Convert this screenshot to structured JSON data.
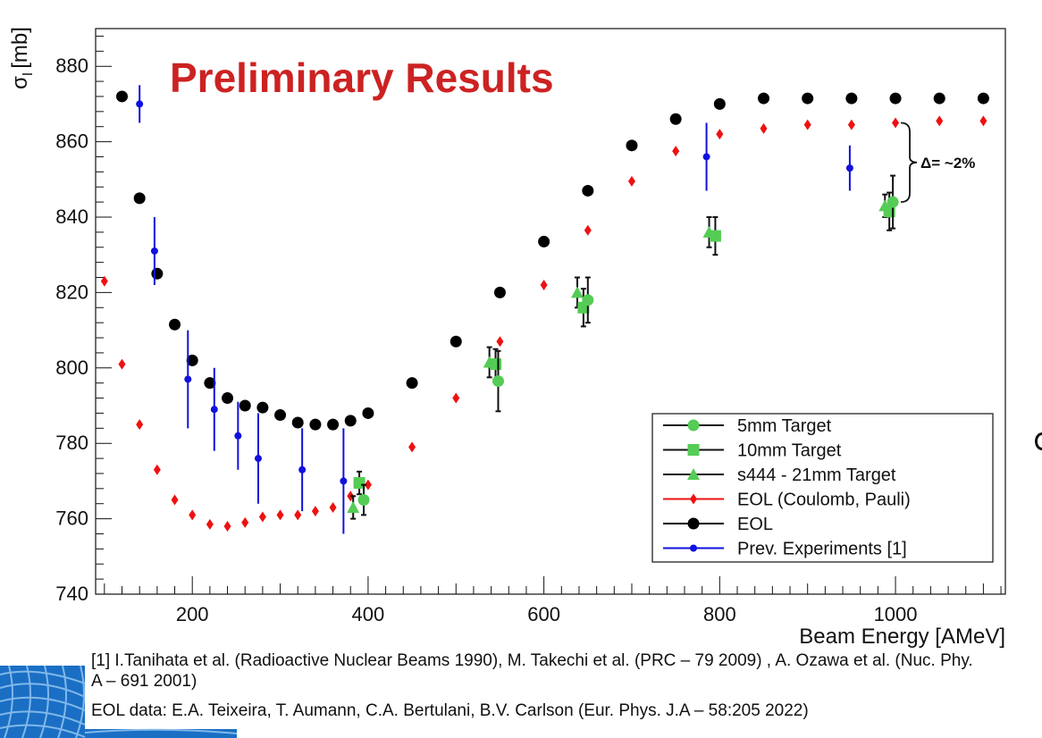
{
  "colors": {
    "eol": "#000000",
    "eol_coulomb_pauli": "#ee1111",
    "prev_experiments": "#1111dd",
    "targets": "#55cc55",
    "preliminary": "#cc2222",
    "logo_blue": "#1a6fc4"
  },
  "chart_data": {
    "type": "scatter",
    "title": "Preliminary Results",
    "xlabel": "Beam Energy [AMeV]",
    "ylabel": "σI [mb]",
    "ylabel_main": "σ",
    "ylabel_sub": "I",
    "ylabel_unit": "[mb]",
    "xlim": [
      90,
      1125
    ],
    "ylim": [
      740,
      890
    ],
    "x_ticks": [
      200,
      400,
      600,
      800,
      1000
    ],
    "y_ticks": [
      740,
      760,
      780,
      800,
      820,
      840,
      860,
      880
    ],
    "grid": false,
    "legend_position": "bottom-right",
    "annotation": {
      "text": "Δ= ~2%",
      "x": 1000,
      "y_low": 844,
      "y_high": 865
    },
    "series": [
      {
        "name": "5mm Target",
        "marker": "circle",
        "color": "#55cc55",
        "points": [
          {
            "x": 395,
            "y": 765,
            "err": 4
          },
          {
            "x": 548,
            "y": 796.5,
            "err": 8
          },
          {
            "x": 650,
            "y": 818,
            "err": 6
          },
          {
            "x": 997,
            "y": 844,
            "err": 7
          }
        ]
      },
      {
        "name": "10mm Target",
        "marker": "square",
        "color": "#55cc55",
        "points": [
          {
            "x": 390,
            "y": 769.5,
            "err": 3
          },
          {
            "x": 545,
            "y": 801,
            "err": 4
          },
          {
            "x": 645,
            "y": 816,
            "err": 5
          },
          {
            "x": 795,
            "y": 835,
            "err": 5
          },
          {
            "x": 993,
            "y": 841.5,
            "err": 5
          }
        ]
      },
      {
        "name": "s444 - 21mm Target",
        "marker": "triangle",
        "color": "#55cc55",
        "points": [
          {
            "x": 383,
            "y": 763,
            "err": 3
          },
          {
            "x": 538,
            "y": 801.5,
            "err": 4
          },
          {
            "x": 638,
            "y": 820,
            "err": 4
          },
          {
            "x": 788,
            "y": 836,
            "err": 4
          },
          {
            "x": 988,
            "y": 843,
            "err": 3
          }
        ]
      },
      {
        "name": "EOL (Coulomb, Pauli)",
        "marker": "diamond",
        "color": "#ee1111",
        "points": [
          {
            "x": 100,
            "y": 823
          },
          {
            "x": 120,
            "y": 801
          },
          {
            "x": 140,
            "y": 785
          },
          {
            "x": 160,
            "y": 773
          },
          {
            "x": 180,
            "y": 765
          },
          {
            "x": 200,
            "y": 761
          },
          {
            "x": 220,
            "y": 758.5
          },
          {
            "x": 240,
            "y": 758
          },
          {
            "x": 260,
            "y": 759
          },
          {
            "x": 280,
            "y": 760.5
          },
          {
            "x": 300,
            "y": 761
          },
          {
            "x": 320,
            "y": 761
          },
          {
            "x": 340,
            "y": 762
          },
          {
            "x": 360,
            "y": 763
          },
          {
            "x": 380,
            "y": 766
          },
          {
            "x": 400,
            "y": 769
          },
          {
            "x": 450,
            "y": 779
          },
          {
            "x": 500,
            "y": 792
          },
          {
            "x": 550,
            "y": 807
          },
          {
            "x": 600,
            "y": 822
          },
          {
            "x": 650,
            "y": 836.5
          },
          {
            "x": 700,
            "y": 849.5
          },
          {
            "x": 750,
            "y": 857.5
          },
          {
            "x": 800,
            "y": 862
          },
          {
            "x": 850,
            "y": 863.5
          },
          {
            "x": 900,
            "y": 864.5
          },
          {
            "x": 950,
            "y": 864.5
          },
          {
            "x": 1000,
            "y": 865
          },
          {
            "x": 1050,
            "y": 865.5
          },
          {
            "x": 1100,
            "y": 865.5
          }
        ]
      },
      {
        "name": "EOL",
        "marker": "circle-large",
        "color": "#000000",
        "points": [
          {
            "x": 120,
            "y": 872
          },
          {
            "x": 140,
            "y": 845
          },
          {
            "x": 160,
            "y": 825
          },
          {
            "x": 180,
            "y": 811.5
          },
          {
            "x": 200,
            "y": 802
          },
          {
            "x": 220,
            "y": 796
          },
          {
            "x": 240,
            "y": 792
          },
          {
            "x": 260,
            "y": 790
          },
          {
            "x": 280,
            "y": 789.5
          },
          {
            "x": 300,
            "y": 787.5
          },
          {
            "x": 320,
            "y": 785.5
          },
          {
            "x": 340,
            "y": 785
          },
          {
            "x": 360,
            "y": 785
          },
          {
            "x": 380,
            "y": 786
          },
          {
            "x": 400,
            "y": 788
          },
          {
            "x": 450,
            "y": 796
          },
          {
            "x": 500,
            "y": 807
          },
          {
            "x": 550,
            "y": 820
          },
          {
            "x": 600,
            "y": 833.5
          },
          {
            "x": 650,
            "y": 847
          },
          {
            "x": 700,
            "y": 859
          },
          {
            "x": 750,
            "y": 866
          },
          {
            "x": 800,
            "y": 870
          },
          {
            "x": 850,
            "y": 871.5
          },
          {
            "x": 900,
            "y": 871.5
          },
          {
            "x": 950,
            "y": 871.5
          },
          {
            "x": 1000,
            "y": 871.5
          },
          {
            "x": 1050,
            "y": 871.5
          },
          {
            "x": 1100,
            "y": 871.5
          }
        ]
      },
      {
        "name": "Prev. Experiments [1]",
        "marker": "circle-small",
        "color": "#1111dd",
        "points": [
          {
            "x": 140,
            "y": 870,
            "err": 5
          },
          {
            "x": 157,
            "y": 831,
            "err": 9
          },
          {
            "x": 195,
            "y": 797,
            "err": 13
          },
          {
            "x": 225,
            "y": 789,
            "err": 11
          },
          {
            "x": 252,
            "y": 782,
            "err": 9
          },
          {
            "x": 275,
            "y": 776,
            "err": 12
          },
          {
            "x": 325,
            "y": 773,
            "err": 11
          },
          {
            "x": 372,
            "y": 770,
            "err": 14
          },
          {
            "x": 785,
            "y": 856,
            "err": 9
          },
          {
            "x": 948,
            "y": 853,
            "err": 6
          }
        ]
      }
    ]
  },
  "references": {
    "ref1": "[1] I.Tanihata et al. (Radioactive Nuclear Beams 1990), M. Takechi et al. (PRC – 79 2009) , A. Ozawa et al. (Nuc. Phy. A – 691 2001)",
    "ref2": "EOL data: E.A. Teixeira, T. Aumann, C.A. Bertulani, B.V. Carlson (Eur. Phys. J.A – 58:205 2022)"
  }
}
